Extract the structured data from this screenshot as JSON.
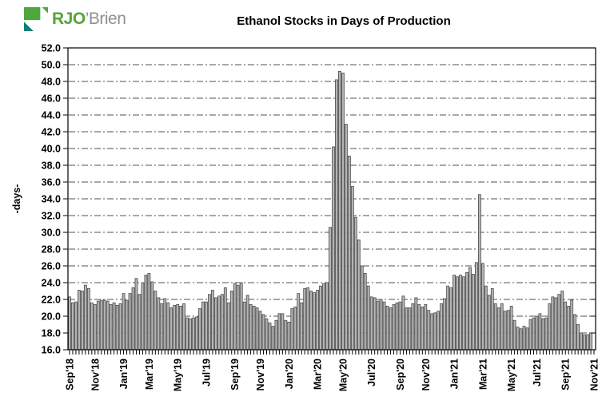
{
  "logo": {
    "text_primary": "RJO",
    "text_secondary": "’Brien",
    "color_primary": "#55a339",
    "color_secondary": "#8e9093",
    "icon_green": "#4fa83d",
    "icon_teal": "#0d8076"
  },
  "chart_data": {
    "type": "bar",
    "title": "Ethanol Stocks in Days of Production",
    "xlabel": "",
    "ylabel": "-days-",
    "ylim": [
      16.0,
      52.0
    ],
    "ytick_step": 2.0,
    "ytick_labels": [
      "52.0",
      "50.0",
      "48.0",
      "46.0",
      "44.0",
      "42.0",
      "40.0",
      "38.0",
      "36.0",
      "34.0",
      "32.0",
      "30.0",
      "28.0",
      "26.0",
      "24.0",
      "22.0",
      "20.0",
      "18.0",
      "16.0"
    ],
    "x_tick_labels": [
      "Sep'18",
      "Nov'18",
      "Jan'19",
      "Mar'19",
      "May'19",
      "Jul'19",
      "Sep'19",
      "Nov'19",
      "Jan'20",
      "Mar'20",
      "May'20",
      "Jul'20",
      "Sep'20",
      "Nov'20",
      "Jan'21",
      "Mar'21",
      "May'21",
      "Jul'21",
      "Sep'21",
      "Nov'21"
    ],
    "x_tick_positions": [
      1,
      9,
      18,
      26,
      35,
      44,
      53,
      61,
      70,
      79,
      87,
      96,
      105,
      113,
      122,
      131,
      140,
      148,
      157,
      166
    ],
    "x_total_slots": 167,
    "frequency": "weekly",
    "grid": true,
    "legend": false,
    "bar_fill": "#b5b5b5",
    "bar_stroke": "#4a4a4a",
    "values": [
      22.3,
      21.6,
      21.7,
      23.1,
      23.0,
      23.7,
      23.3,
      21.6,
      21.4,
      21.8,
      21.9,
      21.9,
      21.8,
      21.4,
      21.6,
      21.3,
      21.5,
      22.7,
      21.9,
      22.7,
      23.4,
      24.5,
      22.6,
      24.0,
      24.9,
      25.1,
      24.1,
      23.0,
      22.2,
      21.5,
      22.1,
      21.6,
      21.0,
      21.3,
      21.4,
      21.2,
      21.5,
      19.8,
      19.7,
      19.8,
      19.9,
      20.9,
      21.7,
      21.7,
      22.6,
      23.1,
      22.2,
      22.4,
      22.6,
      23.4,
      21.6,
      23.0,
      23.9,
      23.7,
      24.0,
      21.7,
      22.5,
      21.4,
      21.2,
      21.0,
      20.6,
      20.2,
      19.7,
      19.2,
      18.8,
      19.5,
      20.3,
      20.3,
      19.5,
      19.3,
      20.9,
      21.1,
      22.7,
      21.6,
      23.3,
      23.4,
      23.0,
      22.8,
      23.1,
      23.6,
      23.9,
      24.0,
      30.6,
      40.2,
      48.2,
      49.2,
      49.0,
      42.9,
      39.1,
      35.5,
      31.8,
      29.1,
      26.0,
      25.1,
      23.6,
      22.3,
      22.2,
      21.8,
      22.0,
      21.7,
      21.2,
      21.0,
      21.4,
      21.6,
      21.7,
      22.4,
      21.0,
      21.0,
      21.5,
      22.2,
      21.4,
      21.1,
      21.4,
      20.7,
      20.3,
      20.4,
      20.6,
      21.5,
      22.1,
      23.6,
      23.4,
      24.9,
      24.7,
      24.9,
      24.7,
      25.2,
      25.8,
      25.0,
      26.4,
      34.5,
      26.3,
      23.6,
      22.5,
      23.3,
      21.5,
      21.0,
      21.5,
      20.6,
      20.7,
      21.2,
      19.5,
      18.7,
      18.5,
      18.8,
      18.6,
      19.6,
      19.8,
      20.0,
      20.3,
      19.7,
      19.8,
      21.5,
      22.3,
      22.2,
      22.6,
      23.0,
      21.7,
      21.2,
      21.9,
      20.2,
      19.0,
      18.0,
      17.8,
      17.8,
      18.0
    ]
  }
}
